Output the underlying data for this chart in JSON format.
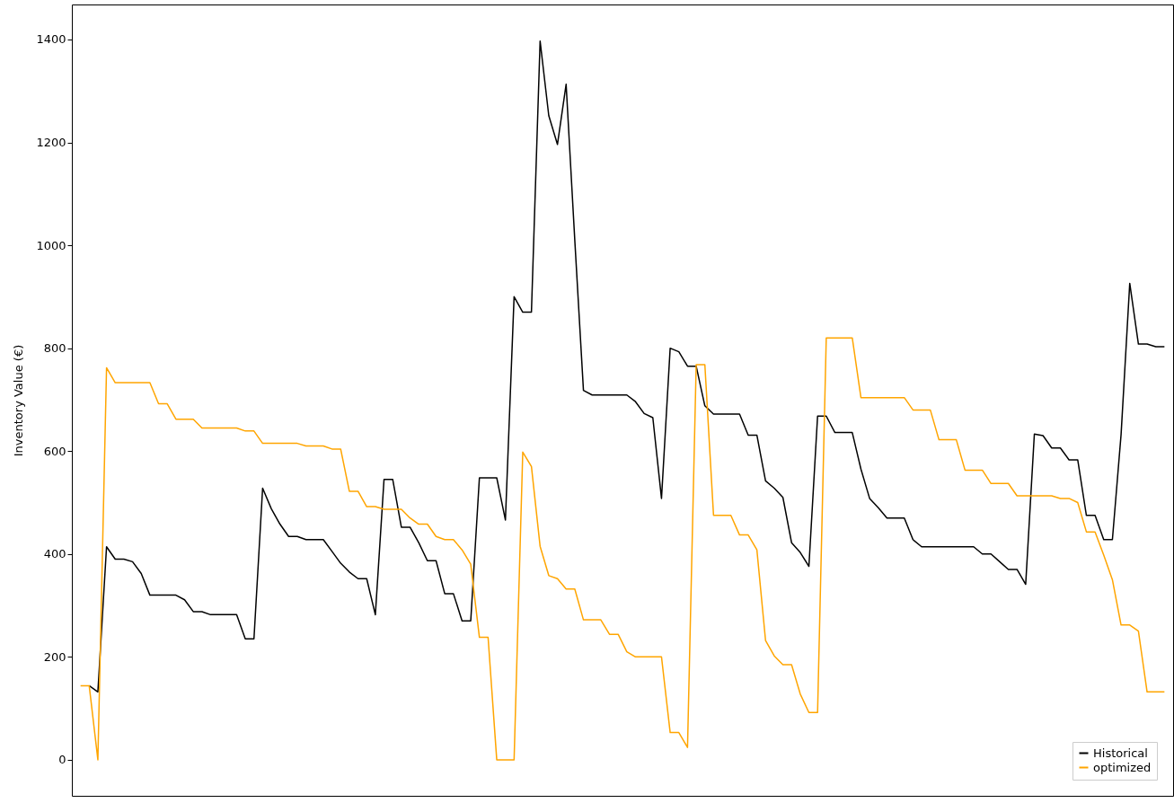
{
  "chart_data": {
    "type": "line",
    "ylabel": "Inventory Value (€)",
    "categories": [
      null,
      null,
      null,
      null,
      null,
      null,
      null,
      null,
      null,
      null,
      null,
      null,
      null,
      null,
      null,
      null,
      null,
      null,
      null,
      null,
      null,
      null,
      null,
      null,
      null,
      null,
      null,
      null,
      null,
      null,
      null,
      null,
      null,
      null,
      null,
      null,
      null,
      null,
      null,
      null,
      null,
      null,
      null,
      null,
      null,
      null,
      null,
      null,
      null,
      null,
      null,
      null,
      null,
      null,
      null,
      null,
      null,
      null,
      null,
      null,
      null,
      null,
      null,
      null,
      null,
      null,
      null,
      null,
      null,
      null,
      null,
      null,
      null,
      null,
      null,
      null,
      null,
      null,
      null,
      null,
      null,
      null,
      null,
      null,
      null,
      null,
      null,
      null,
      null,
      null,
      null,
      null,
      null,
      null,
      null,
      null,
      null,
      null,
      null,
      null,
      null,
      null,
      null,
      null,
      null,
      null,
      null,
      null,
      null,
      null,
      null,
      null,
      null,
      null,
      null,
      null,
      null,
      null,
      null,
      null,
      null,
      null,
      null,
      null,
      null,
      null
    ],
    "series": [
      {
        "name": "Historical",
        "color": "#000000",
        "values": [
          null,
          144,
          132,
          414,
          390,
          390,
          385,
          362,
          320,
          320,
          320,
          320,
          311,
          288,
          288,
          282,
          282,
          282,
          282,
          235,
          235,
          528,
          488,
          458,
          434,
          434,
          428,
          428,
          428,
          405,
          382,
          365,
          352,
          352,
          282,
          545,
          545,
          452,
          452,
          422,
          387,
          387,
          323,
          323,
          270,
          270,
          548,
          548,
          548,
          466,
          900,
          870,
          870,
          1397,
          1252,
          1196,
          1313,
          1010,
          718,
          709,
          709,
          709,
          709,
          709,
          696,
          673,
          665,
          508,
          800,
          793,
          765,
          765,
          688,
          672,
          672,
          672,
          672,
          631,
          631,
          542,
          528,
          510,
          422,
          403,
          376,
          668,
          668,
          636,
          636,
          636,
          565,
          508,
          490,
          470,
          470,
          470,
          428,
          414,
          414,
          414,
          414,
          414,
          414,
          414,
          400,
          400,
          385,
          370,
          370,
          341,
          633,
          630,
          606,
          606,
          583,
          583,
          475,
          475,
          428,
          428,
          632,
          926,
          808,
          808,
          803,
          803
        ]
      },
      {
        "name": "optimized",
        "color": "#ffa500",
        "values": [
          144,
          144,
          0,
          762,
          733,
          733,
          733,
          733,
          733,
          692,
          692,
          662,
          662,
          662,
          645,
          645,
          645,
          645,
          645,
          639,
          639,
          615,
          615,
          615,
          615,
          615,
          610,
          610,
          610,
          604,
          604,
          522,
          522,
          492,
          492,
          487,
          487,
          487,
          470,
          458,
          458,
          434,
          428,
          428,
          408,
          380,
          238,
          238,
          0,
          0,
          0,
          598,
          570,
          415,
          358,
          352,
          332,
          332,
          272,
          272,
          272,
          244,
          244,
          210,
          200,
          200,
          200,
          200,
          53,
          53,
          24,
          768,
          768,
          475,
          475,
          475,
          437,
          437,
          408,
          232,
          202,
          185,
          185,
          128,
          92,
          92,
          820,
          820,
          820,
          820,
          704,
          704,
          704,
          704,
          704,
          704,
          680,
          680,
          680,
          622,
          622,
          622,
          563,
          563,
          563,
          537,
          537,
          537,
          513,
          513,
          513,
          513,
          513,
          508,
          508,
          500,
          443,
          443,
          398,
          350,
          262,
          262,
          250,
          132,
          132,
          132
        ]
      }
    ],
    "ylim": [
      -70,
      1468
    ],
    "yticks": [
      0,
      200,
      400,
      600,
      800,
      1000,
      1200,
      1400
    ],
    "tick_labels": "y",
    "legend": "bottom right",
    "grid": false
  }
}
